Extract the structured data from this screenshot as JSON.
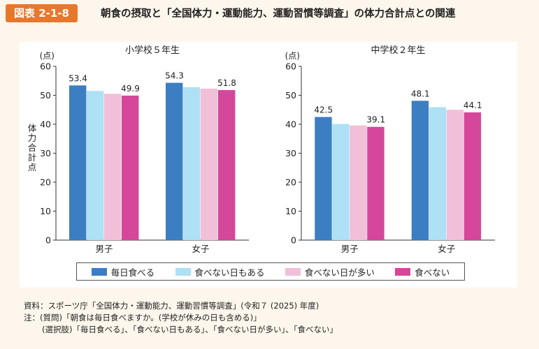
{
  "header": {
    "badge": "図表 2-1-8",
    "title": "朝食の摂取と「全国体力・運動能力、運動習慣等調査」の体力合計点との関連"
  },
  "colors": {
    "header_accent": "#e8772e",
    "series": [
      "#3b7ec1",
      "#aee0f6",
      "#f2bfd8",
      "#d5479a"
    ]
  },
  "chart_data": [
    {
      "type": "bar",
      "title": "小学校５年生",
      "ylabel": "体力合計点",
      "yunit": "(点)",
      "ylim": [
        0,
        60
      ],
      "yticks": [
        0,
        10,
        20,
        30,
        40,
        50,
        60
      ],
      "categories": [
        "男子",
        "女子"
      ],
      "series": [
        {
          "name": "毎日食べる",
          "values": [
            53.4,
            54.3
          ]
        },
        {
          "name": "食べない日もある",
          "values": [
            51.5,
            52.8
          ]
        },
        {
          "name": "食べない日が多い",
          "values": [
            50.5,
            52.3
          ]
        },
        {
          "name": "食べない",
          "values": [
            49.9,
            51.8
          ]
        }
      ],
      "data_labels": {
        "series_indices": [
          0,
          3
        ],
        "text": [
          [
            "53.4",
            "54.3"
          ],
          [
            "49.9",
            "51.8"
          ]
        ]
      }
    },
    {
      "type": "bar",
      "title": "中学校２年生",
      "ylabel": "",
      "yunit": "(点)",
      "ylim": [
        0,
        60
      ],
      "yticks": [
        0,
        10,
        20,
        30,
        40,
        50,
        60
      ],
      "categories": [
        "男子",
        "女子"
      ],
      "series": [
        {
          "name": "毎日食べる",
          "values": [
            42.5,
            48.1
          ]
        },
        {
          "name": "食べない日もある",
          "values": [
            40.1,
            45.9
          ]
        },
        {
          "name": "食べない日が多い",
          "values": [
            39.6,
            45.0
          ]
        },
        {
          "name": "食べない",
          "values": [
            39.1,
            44.1
          ]
        }
      ],
      "data_labels": {
        "series_indices": [
          0,
          3
        ],
        "text": [
          [
            "42.5",
            "48.1"
          ],
          [
            "39.1",
            "44.1"
          ]
        ]
      }
    }
  ],
  "legend": {
    "items": [
      "毎日食べる",
      "食べない日もある",
      "食べない日が多い",
      "食べない"
    ]
  },
  "notes": {
    "source": "資料：スポーツ庁「全国体力・運動能力、運動習慣等調査」(令和７ (2025) 年度)",
    "note1": "注：(質問)「朝食は毎日食べますか。(学校が休みの日も含める)」",
    "note2": "(選択肢)「毎日食べる」、「食べない日もある」、「食べない日が多い」、「食べない」"
  }
}
